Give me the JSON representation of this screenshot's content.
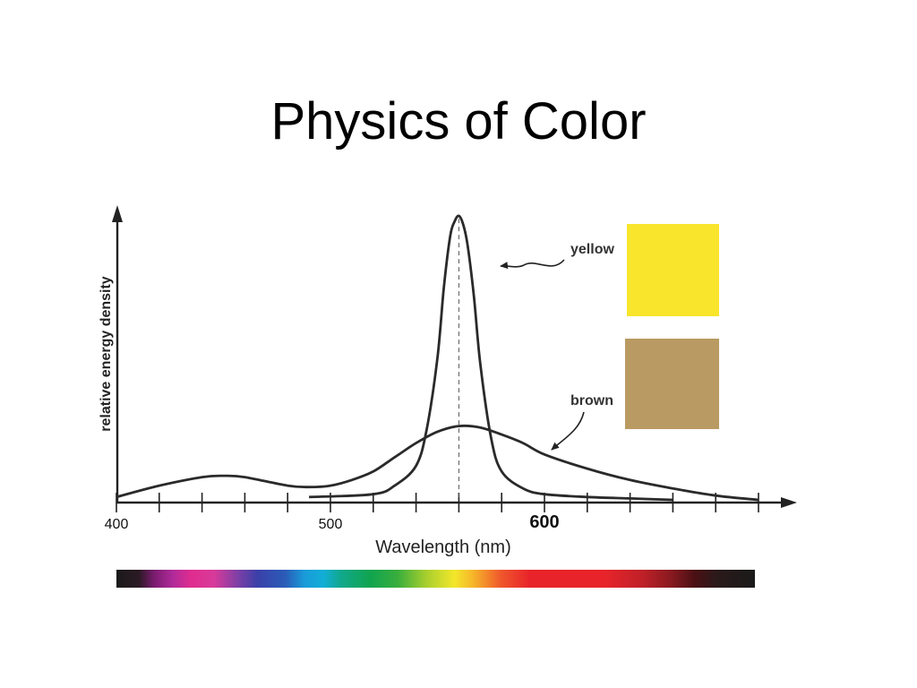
{
  "slide": {
    "title": "Physics of Color"
  },
  "chart_data": {
    "type": "line",
    "xlabel": "Wavelength (nm)",
    "ylabel": "relative energy density",
    "xlim": [
      400,
      700
    ],
    "ylim": [
      0,
      1
    ],
    "x_tick_values": [
      400,
      420,
      440,
      460,
      480,
      500,
      520,
      540,
      560,
      580,
      600,
      620,
      640,
      660,
      680,
      700
    ],
    "tick_labels": [
      {
        "value": 400,
        "text": "400",
        "emphasis": false
      },
      {
        "value": 500,
        "text": "500",
        "emphasis": false
      },
      {
        "value": 600,
        "text": "600",
        "emphasis": true
      }
    ],
    "series": [
      {
        "name": "yellow",
        "swatch_color": "#f8e52c",
        "x": [
          490,
          520,
          530,
          540,
          545,
          550,
          553,
          556,
          558,
          560,
          562,
          564,
          567,
          570,
          575,
          580,
          590,
          600,
          620,
          640,
          660
        ],
        "y": [
          0.01,
          0.02,
          0.05,
          0.12,
          0.25,
          0.5,
          0.75,
          0.93,
          0.98,
          1.0,
          0.97,
          0.9,
          0.72,
          0.48,
          0.22,
          0.1,
          0.04,
          0.02,
          0.01,
          0.005,
          0.0
        ]
      },
      {
        "name": "brown",
        "swatch_color": "#b99a62",
        "x": [
          400,
          420,
          440,
          450,
          460,
          480,
          490,
          500,
          510,
          520,
          530,
          540,
          550,
          560,
          570,
          580,
          590,
          600,
          620,
          640,
          660,
          680,
          700
        ],
        "y": [
          0.01,
          0.05,
          0.08,
          0.085,
          0.08,
          0.05,
          0.045,
          0.05,
          0.07,
          0.1,
          0.15,
          0.2,
          0.24,
          0.26,
          0.255,
          0.23,
          0.2,
          0.16,
          0.11,
          0.07,
          0.04,
          0.015,
          0.0
        ]
      }
    ],
    "annotations": [
      {
        "type": "vertical-dashed-line",
        "x": 560
      }
    ],
    "spectrum_bar": {
      "range": [
        380,
        720
      ],
      "stops": [
        {
          "nm": 380,
          "color": "#1a1a1a"
        },
        {
          "nm": 392,
          "color": "#2b1a24"
        },
        {
          "nm": 400,
          "color": "#7a1b6e"
        },
        {
          "nm": 410,
          "color": "#b02a9a"
        },
        {
          "nm": 420,
          "color": "#e02c8f"
        },
        {
          "nm": 432,
          "color": "#d83a9a"
        },
        {
          "nm": 445,
          "color": "#7b3fa6"
        },
        {
          "nm": 455,
          "color": "#3b3fa8"
        },
        {
          "nm": 470,
          "color": "#2a5cb8"
        },
        {
          "nm": 480,
          "color": "#1a9ad8"
        },
        {
          "nm": 490,
          "color": "#12aed8"
        },
        {
          "nm": 500,
          "color": "#10a88a"
        },
        {
          "nm": 515,
          "color": "#10a450"
        },
        {
          "nm": 530,
          "color": "#3aae3c"
        },
        {
          "nm": 545,
          "color": "#a8cf2e"
        },
        {
          "nm": 560,
          "color": "#f3e72a"
        },
        {
          "nm": 570,
          "color": "#f6b52a"
        },
        {
          "nm": 585,
          "color": "#f0562c"
        },
        {
          "nm": 600,
          "color": "#e8242a"
        },
        {
          "nm": 640,
          "color": "#e8242a"
        },
        {
          "nm": 660,
          "color": "#c02028"
        },
        {
          "nm": 675,
          "color": "#8a1a20"
        },
        {
          "nm": 688,
          "color": "#4a1014"
        },
        {
          "nm": 700,
          "color": "#2a1a1a"
        },
        {
          "nm": 720,
          "color": "#1a1a1a"
        }
      ]
    }
  }
}
